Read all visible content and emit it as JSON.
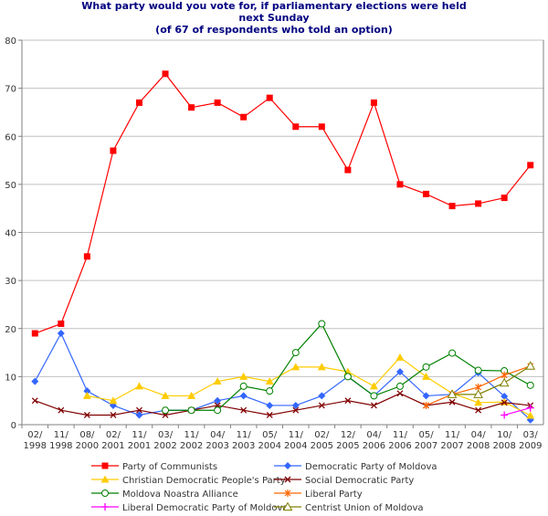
{
  "chart_data": {
    "type": "line",
    "title_lines": [
      "What party would you vote for, if parliamentary elections were held",
      "next Sunday",
      "(of 67 of respondents who told an option)"
    ],
    "ylim": [
      0,
      80
    ],
    "yticks": [
      "0",
      "10",
      "20",
      "30",
      "40",
      "50",
      "60",
      "70",
      "80"
    ],
    "categories": [
      "02/ 1998",
      "11/ 1998",
      "08/ 2000",
      "02/ 2001",
      "11/ 2001",
      "03/ 2002",
      "11/ 2002",
      "04/ 2003",
      "11/ 2003",
      "05/ 2004",
      "11/ 2004",
      "02/ 2005",
      "12/ 2005",
      "04/ 2006",
      "11/ 2006",
      "05/ 2007",
      "11/ 2007",
      "04/ 2008",
      "10/ 2008",
      "03/ 2009"
    ],
    "grid": "horizontal",
    "legend_placement": "bottom",
    "series": [
      {
        "name": "Party of Communists",
        "color": "#ff0000",
        "marker": "square",
        "values": [
          19,
          21,
          35,
          57,
          67,
          73,
          66,
          67,
          64,
          68,
          62,
          62,
          53,
          67,
          50,
          48,
          45.5,
          46,
          47.2,
          54
        ]
      },
      {
        "name": "Democratic Party of Moldova",
        "color": "#3366ff",
        "marker": "diamond",
        "values": [
          9,
          19,
          7,
          4,
          2,
          3,
          3,
          5,
          6,
          4,
          4,
          6,
          10,
          6,
          11,
          6,
          6.3,
          10.8,
          5.9,
          1
        ]
      },
      {
        "name": "Christian Democratic People's Party",
        "color": "#ffcc00",
        "marker": "triangle",
        "values": [
          null,
          null,
          6,
          5,
          8,
          6,
          6,
          9,
          10,
          9,
          12,
          12,
          11,
          8,
          14,
          10,
          6.5,
          4.6,
          4.7,
          1.9
        ]
      },
      {
        "name": "Social Democratic Party",
        "color": "#800000",
        "marker": "x",
        "values": [
          5,
          3,
          2,
          2,
          3,
          2,
          3,
          4,
          3,
          2,
          3,
          4,
          5,
          4,
          6.5,
          4,
          4.7,
          3,
          4.6,
          4
        ]
      },
      {
        "name": " Moldova Noastra Alliance",
        "color": "#008000",
        "marker": "circle",
        "values": [
          null,
          null,
          null,
          null,
          null,
          3,
          3,
          3,
          8,
          7,
          15,
          21,
          10,
          6,
          8,
          12,
          14.9,
          11.3,
          11.2,
          8.2
        ]
      },
      {
        "name": "Liberal Party",
        "color": "#ff6600",
        "marker": "star",
        "values": [
          null,
          null,
          null,
          null,
          null,
          null,
          null,
          null,
          null,
          null,
          null,
          null,
          null,
          null,
          null,
          4,
          6.3,
          7.8,
          10.3,
          12.2
        ]
      },
      {
        "name": "Liberal Democratic Party of Moldova",
        "color": "#ff00ff",
        "marker": "plus",
        "values": [
          null,
          null,
          null,
          null,
          null,
          null,
          null,
          null,
          null,
          null,
          null,
          null,
          null,
          null,
          null,
          null,
          null,
          null,
          2,
          3.5
        ]
      },
      {
        "name": "Centrist Union of Moldova",
        "color": "#808000",
        "marker": "opentriangle",
        "values": [
          null,
          null,
          null,
          null,
          null,
          null,
          null,
          null,
          null,
          null,
          null,
          null,
          null,
          null,
          null,
          null,
          6.3,
          6.3,
          8.7,
          12.2
        ]
      }
    ]
  }
}
